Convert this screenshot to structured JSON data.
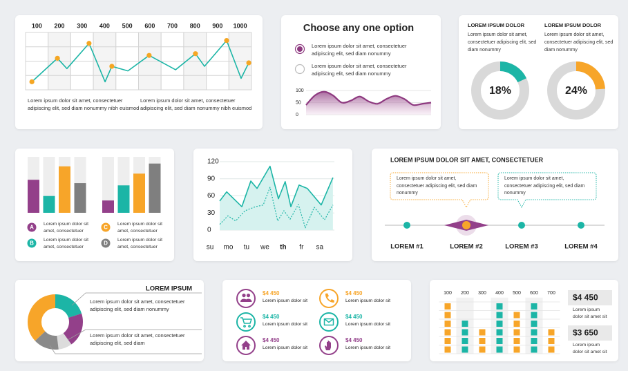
{
  "chart_data": [
    {
      "type": "line",
      "xlim": [
        50,
        1050
      ],
      "xticks": [
        100,
        200,
        300,
        400,
        500,
        600,
        700,
        800,
        900,
        1000
      ],
      "ylim": [
        0,
        100
      ],
      "x": [
        78,
        191,
        233,
        331,
        402,
        432,
        503,
        597,
        714,
        802,
        842,
        940,
        1004,
        1038
      ],
      "series": [
        {
          "color": "#1cb5a6",
          "values": [
            14,
            55,
            37,
            81,
            14,
            41,
            33,
            60,
            35,
            63,
            41,
            86,
            20,
            47
          ],
          "markers": [
            true,
            true,
            false,
            true,
            false,
            true,
            false,
            true,
            false,
            true,
            false,
            true,
            false,
            true
          ],
          "marker_color": "#f5a623"
        }
      ],
      "grid": true,
      "annotations": [
        "Lorem ipsum dolor sit amet, consectetuer adipiscing elit, sed diam nonummy nibh euismod",
        "Lorem ipsum dolor sit amet, consectetuer adipiscing elit, sed diam nonummy nibh euismod"
      ]
    },
    {
      "type": "area",
      "title": "Choose any one option",
      "options": [
        "Lorem ipsum dolor sit amet, consectetuer adipiscing elit, sed diam nonummy",
        "Lorem ipsum dolor sit amet, consectetuer adipiscing elit, sed diam nonummy"
      ],
      "selected": 0,
      "ylim": [
        0,
        100
      ],
      "yticks": [
        0,
        50,
        100
      ],
      "color": "#8e3a80",
      "values": [
        40,
        80,
        95,
        80,
        50,
        58,
        75,
        55,
        45,
        65,
        78,
        65,
        40,
        45,
        50
      ]
    },
    {
      "type": "donut",
      "title": "LOREM IPSUM DOLOR",
      "text": "Lorem ipsum dolor sit amet, consectetuer adipiscing elit, sed diam nonummy",
      "scale": [
        0,
        100
      ],
      "values": [
        18
      ],
      "value_labels": [
        "18%"
      ],
      "color": "#1cb5a6"
    },
    {
      "type": "donut",
      "title": "LOREM IPSUM DOLOR",
      "text": "Lorem ipsum dolor sit amet, consectetuer adipiscing elit, sed diam nonummy",
      "scale": [
        0,
        100
      ],
      "values": [
        24
      ],
      "value_labels": [
        "24%"
      ],
      "color": "#f7a529"
    },
    {
      "type": "bar",
      "ylim": [
        0,
        100
      ],
      "series": [
        {
          "name": "A",
          "color": "#93408a",
          "values": [
            59,
            22
          ],
          "text": "Lorem ipsum dolor sit amet, consectetuer"
        },
        {
          "name": "B",
          "color": "#1cb5a6",
          "values": [
            30,
            49
          ],
          "text": "Lorem ipsum dolor sit amet, consectetuer"
        },
        {
          "name": "C",
          "color": "#f7a529",
          "values": [
            83,
            70
          ],
          "text": "Lorem ipsum dolor sit amet, consectetuer"
        },
        {
          "name": "D",
          "color": "#7f7f7f",
          "values": [
            53,
            88
          ],
          "text": "Lorem ipsum dolor sit amet, consectetuer"
        }
      ]
    },
    {
      "type": "line",
      "ylim": [
        0,
        120
      ],
      "yticks": [
        0,
        30,
        60,
        90,
        120
      ],
      "xlim": [
        0,
        6.8
      ],
      "xticks": [
        {
          "value": 0,
          "label": "su"
        },
        {
          "value": 1,
          "label": "mo"
        },
        {
          "value": 2,
          "label": "tu"
        },
        {
          "value": 3,
          "label": "we"
        },
        {
          "value": 4,
          "label": "th"
        },
        {
          "value": 5,
          "label": "fr"
        },
        {
          "value": 6,
          "label": "sa"
        }
      ],
      "bold_tick": 4,
      "grid": true,
      "series": [
        {
          "color": "#1cb5a6",
          "fill": "#d6f2ef",
          "x": [
            0.53,
            0.91,
            1.74,
            2.23,
            2.57,
            3.28,
            3.74,
            4.11,
            4.42,
            4.87,
            5.32,
            6.08,
            6.72
          ],
          "values": [
            51,
            67,
            41,
            86,
            73,
            112,
            55,
            85,
            41,
            79,
            73,
            44,
            92
          ]
        },
        {
          "color": "#1cb5a6",
          "dash": true,
          "x": [
            0.53,
            0.98,
            1.4,
            1.92,
            2.49,
            2.91,
            3.28,
            3.7,
            4.04,
            4.38,
            4.83,
            5.21,
            5.7,
            6.26,
            6.72
          ],
          "values": [
            10,
            25,
            16,
            34,
            41,
            44,
            75,
            16,
            34,
            19,
            45,
            4,
            40,
            18,
            44
          ]
        }
      ]
    },
    {
      "type": "donut",
      "title": "LOREM IPSUM",
      "annotations": [
        "Lorem ipsum dolor sit amet, consectetuer adipiscing elit, sed diam nonummy",
        "Lorem ipsum dolor sit amet, consectetuer adipiscing elit, sed diam"
      ],
      "values": [
        20,
        20,
        8,
        15,
        37
      ],
      "colors": [
        "#1cb5a6",
        "#93408a",
        "#dcdcdc",
        "#8a8a8a",
        "#f7a529"
      ]
    },
    {
      "type": "dots",
      "categories": [
        "100",
        "200",
        "300",
        "400",
        "500",
        "600",
        "700"
      ],
      "ylim": [
        0,
        6.5
      ],
      "values": [
        6,
        4,
        3,
        6,
        5,
        6,
        3
      ],
      "colors": [
        "#f7a529",
        "#1cb5a6",
        "#f7a529",
        "#1cb5a6",
        "#f7a529",
        "#1cb5a6",
        "#f7a529"
      ],
      "callouts": [
        {
          "value": "$4 450",
          "text": "Lorem ipsum dolor sit amet sit"
        },
        {
          "value": "$3 650",
          "text": "Lorem ipsum dolor sit amet sit"
        }
      ]
    }
  ],
  "timeline": {
    "title": "LOREM IPSUM DOLOR SIT AMET, CONSECTETUER",
    "callouts": [
      "Lorem ipsum dolor sit amet, consectetuer adipiscing elit, sed diam nonummy",
      "Lorem ipsum dolor sit amet, consectetuer adipiscing elit, sed diam nonummy"
    ],
    "steps": [
      "LOREM #1",
      "LOREM #2",
      "LOREM #3",
      "LOREM #4"
    ],
    "active": 1,
    "color": "#1cb5a6",
    "active_color": "#f7a529"
  },
  "stats": {
    "items": [
      {
        "value": "$4 450",
        "text": "Lorem ipsum dolor sit",
        "color": "#93408a",
        "value_color": "#f7a529"
      },
      {
        "value": "$4 450",
        "text": "Lorem ipsum dolor sit",
        "color": "#f7a529",
        "value_color": "#f7a529"
      },
      {
        "value": "$4 450",
        "text": "Lorem ipsum dolor sit",
        "color": "#1cb5a6",
        "value_color": "#1cb5a6"
      },
      {
        "value": "$4 450",
        "text": "Lorem ipsum dolor sit",
        "color": "#1cb5a6",
        "value_color": "#1cb5a6"
      },
      {
        "value": "$4 450",
        "text": "Lorem ipsum dolor sit",
        "color": "#93408a",
        "value_color": "#93408a"
      },
      {
        "value": "$4 450",
        "text": "Lorem ipsum dolor sit",
        "color": "#93408a",
        "value_color": "#93408a"
      }
    ]
  }
}
